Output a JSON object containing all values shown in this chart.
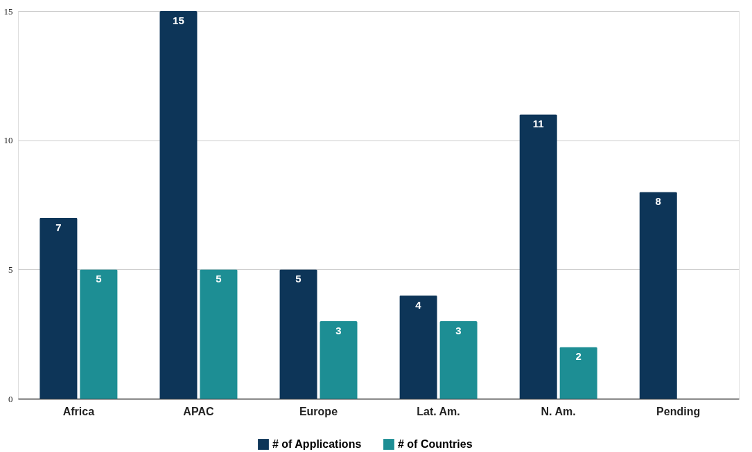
{
  "chart_data": {
    "type": "bar",
    "categories": [
      "Africa",
      "APAC",
      "Europe",
      "Lat. Am.",
      "N. Am.",
      "Pending"
    ],
    "series": [
      {
        "name": "# of Applications",
        "color": "#0d3558",
        "values": [
          7,
          15,
          5,
          4,
          11,
          8
        ]
      },
      {
        "name": "# of Countries",
        "color": "#1d8e94",
        "values": [
          5,
          5,
          3,
          3,
          2,
          null
        ]
      }
    ],
    "ylim": [
      0,
      15
    ],
    "yticks": [
      0,
      5,
      10,
      15
    ],
    "grid": "y",
    "legend": "bottom",
    "data_labels": true
  }
}
